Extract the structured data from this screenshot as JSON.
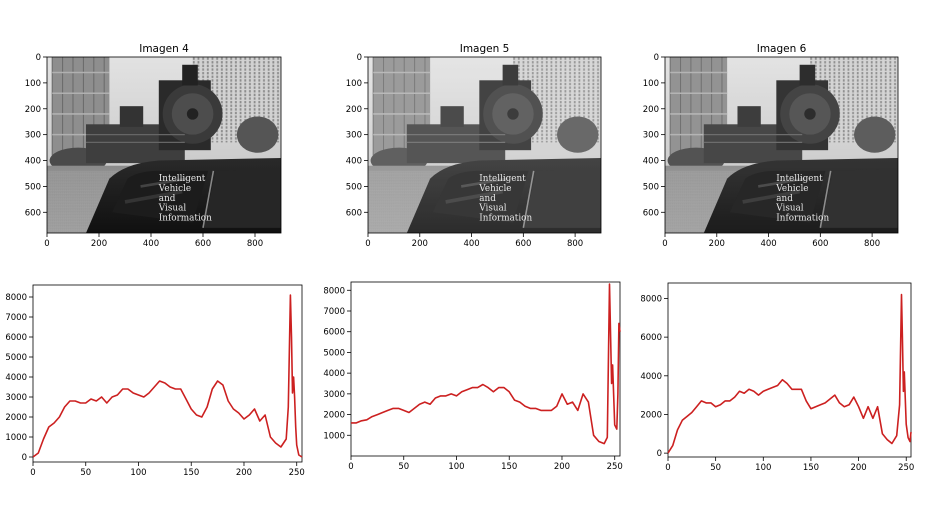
{
  "chart_data": [
    {
      "type": "image",
      "title": "Imagen 4",
      "xlim": [
        0,
        900
      ],
      "ylim": [
        680,
        0
      ],
      "xticks": [
        0,
        200,
        400,
        600,
        800
      ],
      "yticks": [
        0,
        100,
        200,
        300,
        400,
        500,
        600
      ],
      "image_text": [
        "Intelligent",
        "Vehicle",
        "and",
        "Visual",
        "Information"
      ]
    },
    {
      "type": "image",
      "title": "Imagen 5",
      "xlim": [
        0,
        900
      ],
      "ylim": [
        680,
        0
      ],
      "xticks": [
        0,
        200,
        400,
        600,
        800
      ],
      "yticks": [
        0,
        100,
        200,
        300,
        400,
        500,
        600
      ],
      "image_text": [
        "Intelligent",
        "Vehicle",
        "and",
        "Visual",
        "Information"
      ]
    },
    {
      "type": "image",
      "title": "Imagen 6",
      "xlim": [
        0,
        900
      ],
      "ylim": [
        680,
        0
      ],
      "xticks": [
        0,
        200,
        400,
        600,
        800
      ],
      "yticks": [
        0,
        100,
        200,
        300,
        400,
        500,
        600
      ],
      "image_text": [
        "Intelligent",
        "Vehicle",
        "and",
        "Visual",
        "Information"
      ]
    },
    {
      "type": "line",
      "line_color": "#cc2020",
      "xlim": [
        0,
        255
      ],
      "ylim": [
        -250,
        8600
      ],
      "xticks": [
        0,
        50,
        100,
        150,
        200,
        250
      ],
      "yticks": [
        0,
        1000,
        2000,
        3000,
        4000,
        5000,
        6000,
        7000,
        8000
      ],
      "series": [
        {
          "x": [
            0,
            5,
            10,
            15,
            20,
            25,
            30,
            35,
            40,
            45,
            50,
            55,
            60,
            65,
            70,
            75,
            80,
            85,
            90,
            95,
            100,
            105,
            110,
            115,
            120,
            125,
            130,
            135,
            140,
            145,
            150,
            155,
            160,
            165,
            170,
            175,
            180,
            185,
            190,
            195,
            200,
            205,
            210,
            215,
            220,
            225,
            230,
            235,
            240,
            242,
            244,
            245,
            246,
            247,
            248,
            249,
            250,
            252,
            255
          ],
          "y": [
            0,
            200,
            900,
            1500,
            1700,
            2000,
            2500,
            2800,
            2800,
            2700,
            2700,
            2900,
            2800,
            3000,
            2700,
            3000,
            3100,
            3400,
            3400,
            3200,
            3100,
            3000,
            3200,
            3500,
            3800,
            3700,
            3500,
            3400,
            3400,
            2900,
            2400,
            2100,
            2000,
            2500,
            3400,
            3800,
            3600,
            2800,
            2400,
            2200,
            1900,
            2100,
            2400,
            1800,
            2100,
            1000,
            700,
            500,
            900,
            2500,
            8100,
            6000,
            3200,
            4000,
            3000,
            1500,
            600,
            100,
            0
          ]
        }
      ]
    },
    {
      "type": "line",
      "line_color": "#cc2020",
      "xlim": [
        0,
        255
      ],
      "ylim": [
        0,
        8400
      ],
      "xticks": [
        0,
        50,
        100,
        150,
        200,
        250
      ],
      "yticks": [
        1000,
        2000,
        3000,
        4000,
        5000,
        6000,
        7000,
        8000
      ],
      "series": [
        {
          "x": [
            0,
            5,
            10,
            15,
            20,
            25,
            30,
            35,
            40,
            45,
            50,
            55,
            60,
            65,
            70,
            75,
            80,
            85,
            90,
            95,
            100,
            105,
            110,
            115,
            120,
            125,
            130,
            135,
            140,
            145,
            150,
            155,
            160,
            165,
            170,
            175,
            180,
            185,
            190,
            195,
            200,
            205,
            210,
            215,
            220,
            225,
            230,
            235,
            240,
            243,
            245,
            246,
            247,
            248,
            250,
            252,
            253,
            254,
            255
          ],
          "y": [
            1600,
            1600,
            1700,
            1750,
            1900,
            2000,
            2100,
            2200,
            2300,
            2300,
            2200,
            2100,
            2300,
            2500,
            2600,
            2500,
            2800,
            2900,
            2900,
            3000,
            2900,
            3100,
            3200,
            3300,
            3300,
            3450,
            3300,
            3100,
            3300,
            3300,
            3100,
            2700,
            2600,
            2400,
            2300,
            2300,
            2200,
            2200,
            2200,
            2400,
            3000,
            2500,
            2600,
            2200,
            3000,
            2600,
            1000,
            700,
            600,
            900,
            8300,
            6000,
            3500,
            4400,
            1500,
            1300,
            3000,
            6400,
            6000
          ]
        }
      ]
    },
    {
      "type": "line",
      "line_color": "#cc2020",
      "xlim": [
        0,
        255
      ],
      "ylim": [
        -200,
        8800
      ],
      "xticks": [
        0,
        50,
        100,
        150,
        200,
        250
      ],
      "yticks": [
        0,
        2000,
        4000,
        6000,
        8000
      ],
      "series": [
        {
          "x": [
            0,
            5,
            10,
            15,
            20,
            25,
            30,
            35,
            40,
            45,
            50,
            55,
            60,
            65,
            70,
            75,
            80,
            85,
            90,
            95,
            100,
            105,
            110,
            115,
            120,
            125,
            130,
            135,
            140,
            145,
            150,
            155,
            160,
            165,
            170,
            175,
            180,
            185,
            190,
            195,
            200,
            205,
            210,
            215,
            220,
            225,
            230,
            235,
            240,
            243,
            245,
            246,
            247,
            248,
            250,
            252,
            254,
            255
          ],
          "y": [
            0,
            400,
            1200,
            1700,
            1900,
            2100,
            2400,
            2700,
            2600,
            2600,
            2400,
            2500,
            2700,
            2700,
            2900,
            3200,
            3100,
            3300,
            3200,
            3000,
            3200,
            3300,
            3400,
            3500,
            3800,
            3600,
            3300,
            3300,
            3300,
            2700,
            2300,
            2400,
            2500,
            2600,
            2800,
            3000,
            2600,
            2400,
            2500,
            2900,
            2400,
            1800,
            2400,
            1800,
            2400,
            1000,
            700,
            500,
            900,
            2500,
            8200,
            6000,
            3200,
            4200,
            1500,
            800,
            600,
            1100
          ]
        }
      ]
    }
  ]
}
